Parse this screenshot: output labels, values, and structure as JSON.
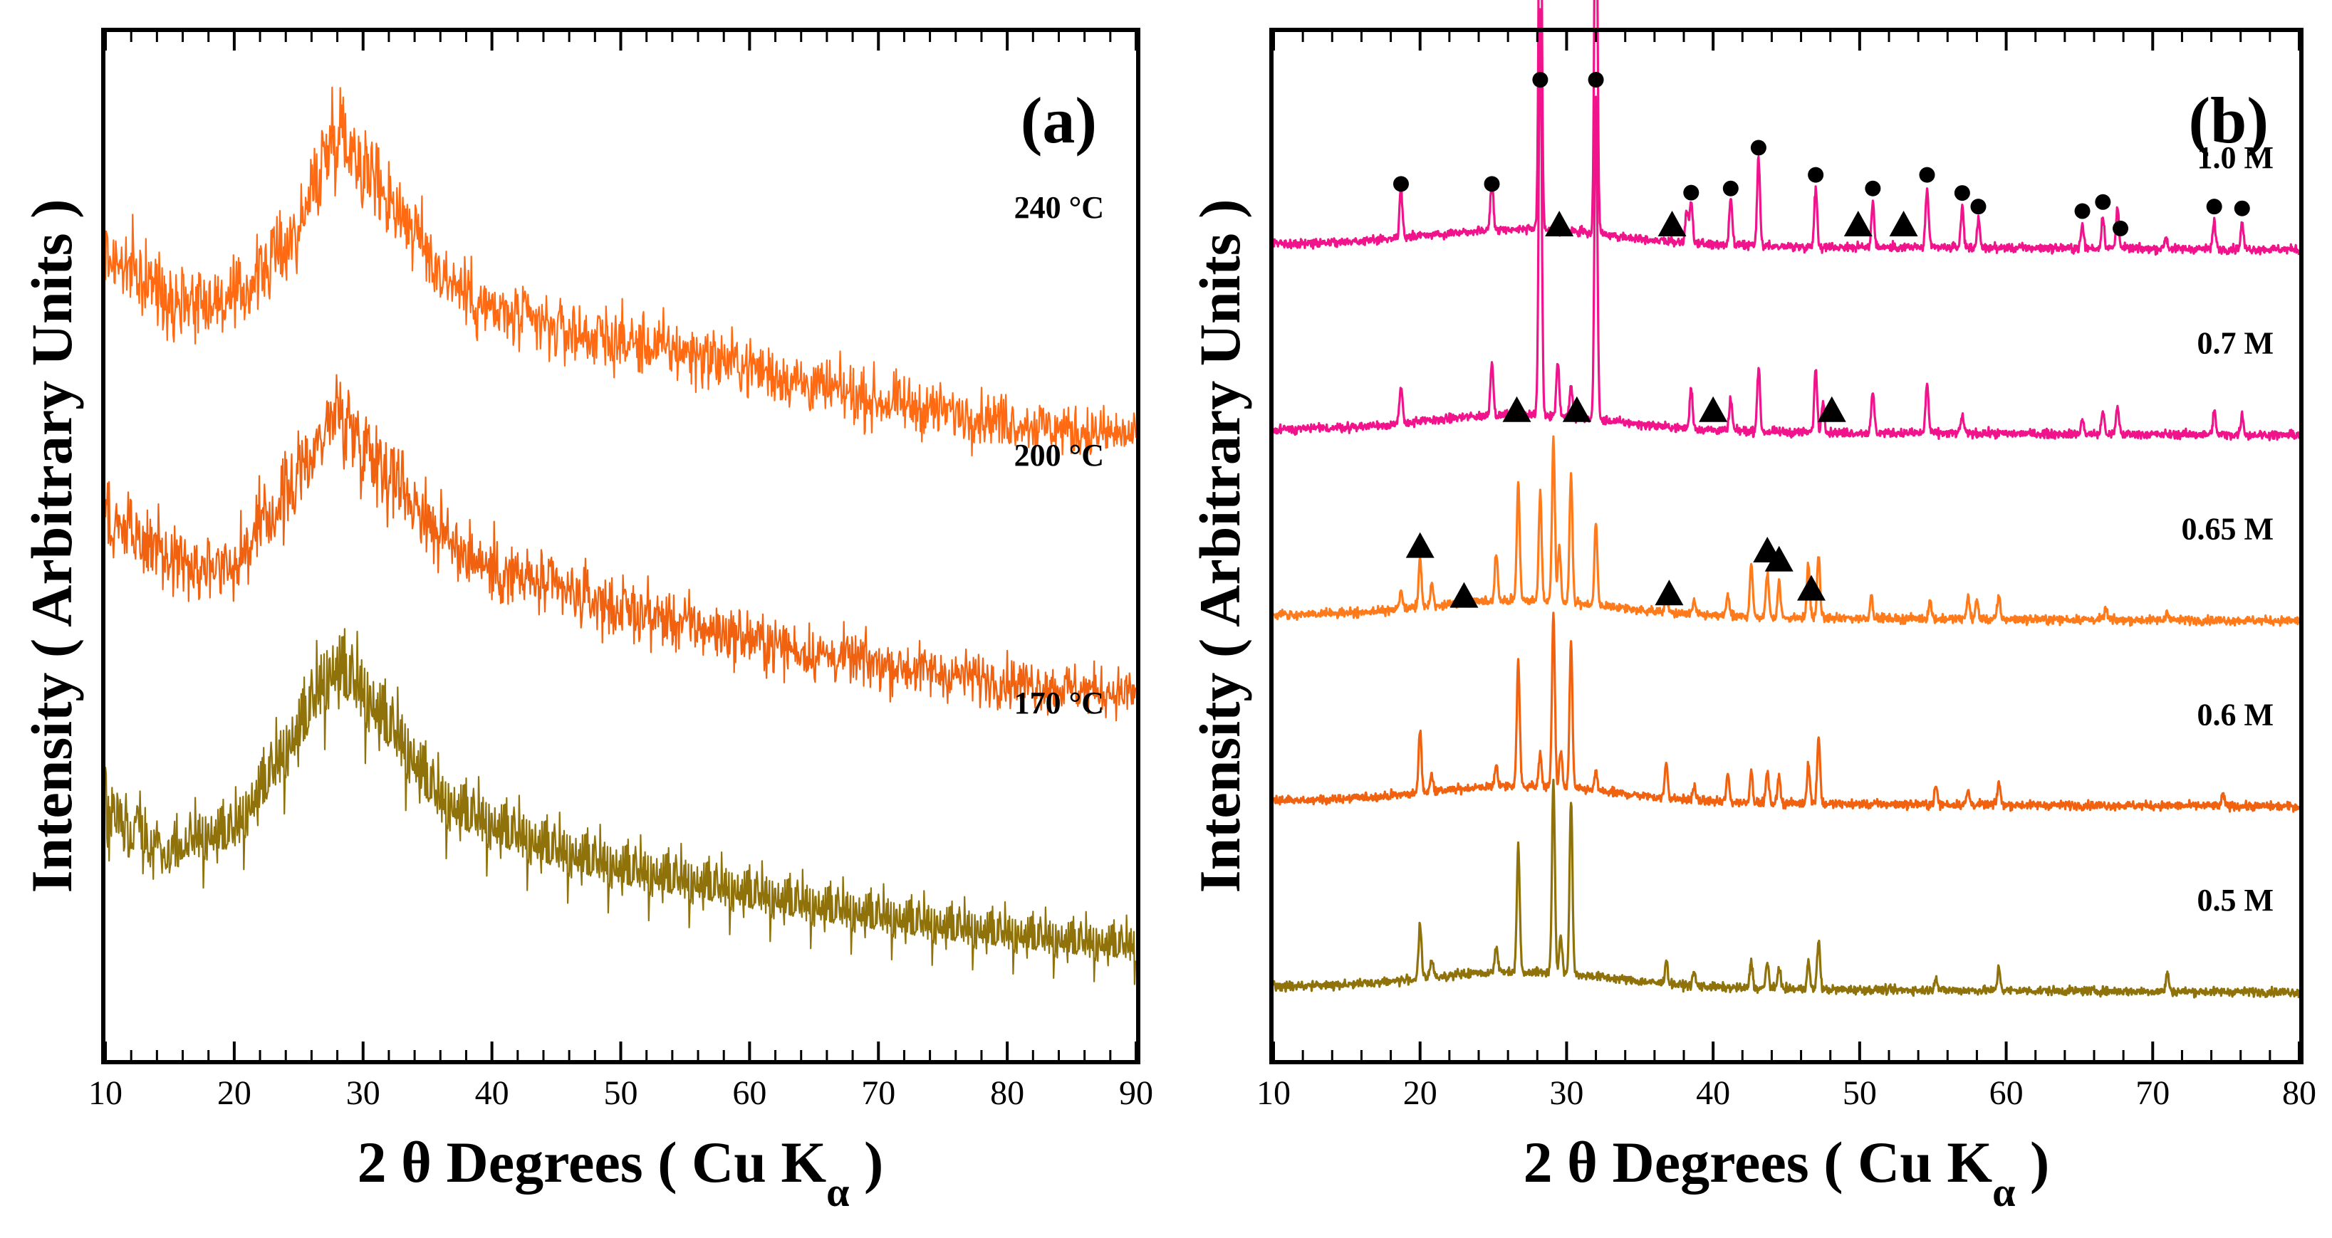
{
  "figure": {
    "panels": [
      "(a)",
      "(b)"
    ]
  },
  "chart_data": [
    {
      "type": "line",
      "panel": "(a)",
      "xlabel": "2 θ Degrees ( Cu K",
      "xlabel_subscript": "α",
      "xlabel_close": " )",
      "ylabel": "Intensity ( Arbitrary Units )",
      "xlim": [
        10,
        90
      ],
      "x_ticks": [
        10,
        20,
        30,
        40,
        50,
        60,
        70,
        80,
        90
      ],
      "y_ticks_shown": false,
      "grid": false,
      "legend": "none",
      "series": [
        {
          "name": "240 °C",
          "color": "#ff6a12",
          "offset": 2.0,
          "noise": 0.16,
          "x": [
            10,
            15,
            20,
            25,
            27,
            28,
            30,
            33,
            36,
            40,
            45,
            50,
            55,
            60,
            65,
            70,
            75,
            80,
            85,
            90
          ],
          "values": [
            0.85,
            0.68,
            0.66,
            0.95,
            1.25,
            1.38,
            1.22,
            1.02,
            0.78,
            0.62,
            0.55,
            0.5,
            0.46,
            0.4,
            0.32,
            0.26,
            0.22,
            0.18,
            0.14,
            0.12
          ]
        },
        {
          "name": "200 °C",
          "color": "#f06210",
          "offset": 1.0,
          "noise": 0.16,
          "x": [
            10,
            15,
            20,
            25,
            27,
            28,
            30,
            33,
            36,
            40,
            45,
            50,
            55,
            60,
            65,
            70,
            75,
            80,
            85,
            90
          ],
          "values": [
            0.8,
            0.62,
            0.6,
            0.95,
            1.15,
            1.22,
            1.1,
            0.92,
            0.72,
            0.58,
            0.5,
            0.42,
            0.36,
            0.3,
            0.24,
            0.2,
            0.16,
            0.13,
            0.1,
            0.08
          ]
        },
        {
          "name": "170 °C",
          "color": "#8f720a",
          "offset": 0.0,
          "noise": 0.18,
          "x": [
            10,
            15,
            20,
            25,
            27,
            28,
            30,
            33,
            36,
            40,
            45,
            50,
            55,
            60,
            65,
            70,
            75,
            80,
            85,
            90
          ],
          "values": [
            0.58,
            0.45,
            0.5,
            0.9,
            1.1,
            1.15,
            1.05,
            0.85,
            0.62,
            0.52,
            0.42,
            0.35,
            0.3,
            0.25,
            0.2,
            0.16,
            0.12,
            0.09,
            0.06,
            0.04
          ]
        }
      ]
    },
    {
      "type": "line",
      "panel": "(b)",
      "xlabel": "2 θ Degrees ( Cu K",
      "xlabel_subscript": "α",
      "xlabel_close": " )",
      "ylabel": "Intensity ( Arbitrary Units )",
      "xlim": [
        10,
        80
      ],
      "x_ticks": [
        10,
        20,
        30,
        40,
        50,
        60,
        70,
        80
      ],
      "y_ticks_shown": false,
      "grid": false,
      "legend": "none",
      "series": [
        {
          "name": "1.0 M",
          "color": "#f0138c",
          "offset": 4.0,
          "peaks": [
            [
              18.7,
              0.55
            ],
            [
              24.9,
              0.55
            ],
            [
              28.2,
              5.2
            ],
            [
              32.0,
              4.8
            ],
            [
              38.2,
              0.35
            ],
            [
              38.5,
              0.45
            ],
            [
              41.2,
              0.5
            ],
            [
              43.1,
              0.95
            ],
            [
              47.0,
              0.65
            ],
            [
              50.9,
              0.5
            ],
            [
              54.6,
              0.65
            ],
            [
              57.0,
              0.45
            ],
            [
              58.1,
              0.3
            ],
            [
              65.2,
              0.25
            ],
            [
              66.6,
              0.35
            ],
            [
              67.6,
              0.45
            ],
            [
              70.9,
              0.12
            ],
            [
              74.2,
              0.3
            ],
            [
              76.1,
              0.28
            ]
          ]
        },
        {
          "name": "0.7 M",
          "color": "#f0138c",
          "offset": 3.0,
          "peaks": [
            [
              18.7,
              0.4
            ],
            [
              24.9,
              0.6
            ],
            [
              28.2,
              4.5
            ],
            [
              29.4,
              0.6
            ],
            [
              30.3,
              0.35
            ],
            [
              32.0,
              3.6
            ],
            [
              38.5,
              0.45
            ],
            [
              41.2,
              0.35
            ],
            [
              43.1,
              0.7
            ],
            [
              47.0,
              0.7
            ],
            [
              47.5,
              0.35
            ],
            [
              50.9,
              0.45
            ],
            [
              54.6,
              0.55
            ],
            [
              57.0,
              0.2
            ],
            [
              65.2,
              0.15
            ],
            [
              66.6,
              0.25
            ],
            [
              67.6,
              0.3
            ],
            [
              74.2,
              0.25
            ],
            [
              76.1,
              0.22
            ]
          ]
        },
        {
          "name": "0.65 M",
          "color": "#ff7a1a",
          "offset": 2.0,
          "peaks": [
            [
              18.7,
              0.2
            ],
            [
              20.0,
              0.55
            ],
            [
              20.8,
              0.25
            ],
            [
              25.2,
              0.55
            ],
            [
              26.7,
              1.3
            ],
            [
              28.2,
              1.2
            ],
            [
              29.1,
              1.8
            ],
            [
              29.5,
              0.6
            ],
            [
              30.3,
              1.4
            ],
            [
              32.0,
              0.9
            ],
            [
              36.8,
              0.2
            ],
            [
              38.7,
              0.15
            ],
            [
              41.0,
              0.25
            ],
            [
              42.6,
              0.6
            ],
            [
              43.7,
              0.5
            ],
            [
              44.5,
              0.4
            ],
            [
              46.5,
              0.6
            ],
            [
              47.2,
              0.7
            ],
            [
              50.8,
              0.25
            ],
            [
              54.8,
              0.2
            ],
            [
              57.4,
              0.25
            ],
            [
              58.0,
              0.2
            ],
            [
              59.5,
              0.25
            ],
            [
              66.8,
              0.12
            ],
            [
              71.0,
              0.1
            ]
          ]
        },
        {
          "name": "0.6 M",
          "color": "#f06210",
          "offset": 1.0,
          "peaks": [
            [
              20.0,
              0.7
            ],
            [
              20.8,
              0.2
            ],
            [
              25.2,
              0.25
            ],
            [
              26.7,
              1.4
            ],
            [
              28.2,
              0.35
            ],
            [
              29.1,
              1.9
            ],
            [
              29.6,
              0.4
            ],
            [
              30.3,
              1.6
            ],
            [
              32.0,
              0.2
            ],
            [
              36.8,
              0.4
            ],
            [
              38.7,
              0.15
            ],
            [
              41.0,
              0.3
            ],
            [
              42.6,
              0.35
            ],
            [
              43.7,
              0.35
            ],
            [
              44.5,
              0.3
            ],
            [
              46.5,
              0.45
            ],
            [
              47.2,
              0.75
            ],
            [
              55.2,
              0.2
            ],
            [
              57.4,
              0.15
            ],
            [
              59.5,
              0.25
            ],
            [
              74.8,
              0.12
            ]
          ]
        },
        {
          "name": "0.5 M",
          "color": "#8f720a",
          "offset": 0.0,
          "peaks": [
            [
              20.0,
              0.6
            ],
            [
              20.8,
              0.2
            ],
            [
              25.2,
              0.3
            ],
            [
              26.7,
              1.4
            ],
            [
              29.1,
              2.1
            ],
            [
              29.6,
              0.4
            ],
            [
              30.3,
              1.9
            ],
            [
              36.8,
              0.25
            ],
            [
              38.7,
              0.15
            ],
            [
              42.6,
              0.3
            ],
            [
              43.7,
              0.3
            ],
            [
              44.5,
              0.25
            ],
            [
              46.5,
              0.3
            ],
            [
              47.2,
              0.55
            ],
            [
              55.2,
              0.15
            ],
            [
              59.5,
              0.25
            ],
            [
              71.0,
              0.2
            ]
          ]
        }
      ],
      "markers": {
        "circle_label": "●",
        "triangle_label": "▲",
        "circles_1_0M": [
          18.7,
          24.9,
          28.2,
          32.0,
          38.5,
          41.2,
          43.1,
          47.0,
          50.9,
          54.6,
          57.0,
          58.1,
          65.2,
          66.6,
          67.8,
          74.2,
          76.1
        ],
        "triangles_1_0M": [
          29.5,
          37.2,
          49.9,
          53.0
        ],
        "triangles_0_7M": [
          26.6,
          30.7,
          40.0,
          48.1
        ],
        "triangles_0_65M": [
          20.0,
          23.0,
          37.0,
          43.7,
          44.5,
          46.7
        ]
      }
    }
  ]
}
